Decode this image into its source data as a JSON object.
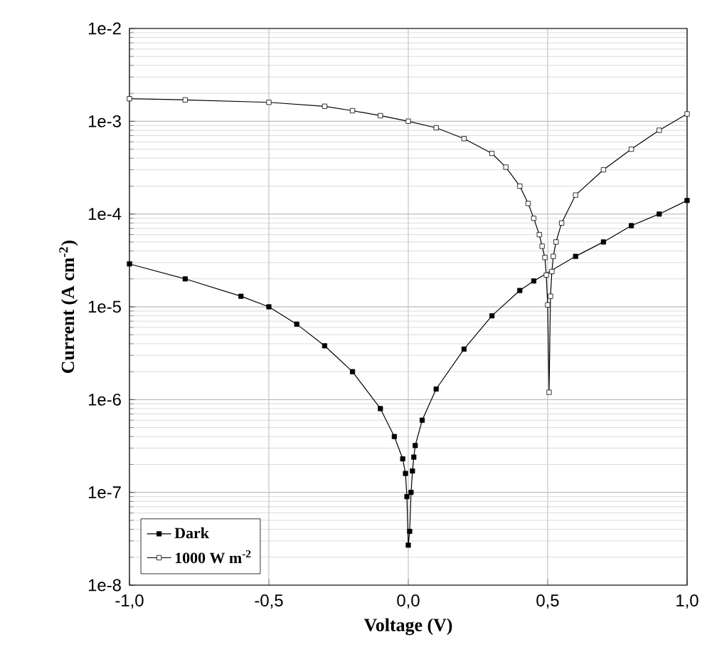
{
  "chart_data": {
    "type": "line",
    "xlabel": "Voltage (V)",
    "ylabel": "Current (A cm$^{-2}$)",
    "log": "y",
    "grid": true,
    "legend": "bottom left",
    "line_style": "solid",
    "xlim": [
      -1,
      1
    ],
    "ylim": [
      1e-08,
      0.01
    ],
    "xticks": [
      {
        "value": -1,
        "label": "-1,0"
      },
      {
        "value": -0.5,
        "label": "-0,5"
      },
      {
        "value": 0,
        "label": "0,0"
      },
      {
        "value": 0.5,
        "label": "0,5"
      },
      {
        "value": 1,
        "label": "1,0"
      }
    ],
    "yticks": [
      {
        "value": 1e-08,
        "label": "1e-8"
      },
      {
        "value": 1e-07,
        "label": "1e-7"
      },
      {
        "value": 1e-06,
        "label": "1e-6"
      },
      {
        "value": 1e-05,
        "label": "1e-5"
      },
      {
        "value": 0.0001,
        "label": "1e-4"
      },
      {
        "value": 0.001,
        "label": "1e-3"
      },
      {
        "value": 0.01,
        "label": "1e-2"
      }
    ],
    "series": [
      {
        "name": "Dark",
        "color": "#000000",
        "marker": "square",
        "x": [
          -1.0,
          -0.8,
          -0.6,
          -0.5,
          -0.4,
          -0.3,
          -0.2,
          -0.1,
          -0.05,
          -0.02,
          -0.01,
          -0.005,
          0.0,
          0.005,
          0.01,
          0.015,
          0.02,
          0.025,
          0.05,
          0.1,
          0.2,
          0.3,
          0.4,
          0.45,
          0.6,
          0.7,
          0.8,
          0.9,
          1.0
        ],
        "values": [
          2.9e-05,
          2e-05,
          1.3e-05,
          1e-05,
          6.5e-06,
          3.8e-06,
          2e-06,
          8e-07,
          4e-07,
          2.3e-07,
          1.6e-07,
          9e-08,
          2.7e-08,
          3.8e-08,
          1e-07,
          1.7e-07,
          2.4e-07,
          3.2e-07,
          6e-07,
          1.3e-06,
          3.5e-06,
          8e-06,
          1.5e-05,
          1.9e-05,
          3.5e-05,
          5e-05,
          7.5e-05,
          0.0001,
          0.00014
        ]
      },
      {
        "name": "1000 W m$^{-2}$",
        "color": "#000000",
        "marker": "square",
        "x": [
          -1.0,
          -0.8,
          -0.5,
          -0.3,
          -0.2,
          -0.1,
          0.0,
          0.1,
          0.2,
          0.3,
          0.35,
          0.4,
          0.43,
          0.45,
          0.47,
          0.48,
          0.49,
          0.495,
          0.5,
          0.505,
          0.51,
          0.515,
          0.52,
          0.53,
          0.55,
          0.6,
          0.7,
          0.8,
          0.9,
          1.0
        ],
        "values": [
          0.00175,
          0.0017,
          0.0016,
          0.00145,
          0.0013,
          0.00115,
          0.001,
          0.00085,
          0.00065,
          0.00045,
          0.00032,
          0.0002,
          0.00013,
          9e-05,
          6e-05,
          4.5e-05,
          3.4e-05,
          2.2e-05,
          1.05e-05,
          1.2e-06,
          1.3e-05,
          2.4e-05,
          3.5e-05,
          5e-05,
          8e-05,
          0.00016,
          0.0003,
          0.0005,
          0.0008,
          0.0012
        ]
      }
    ]
  }
}
